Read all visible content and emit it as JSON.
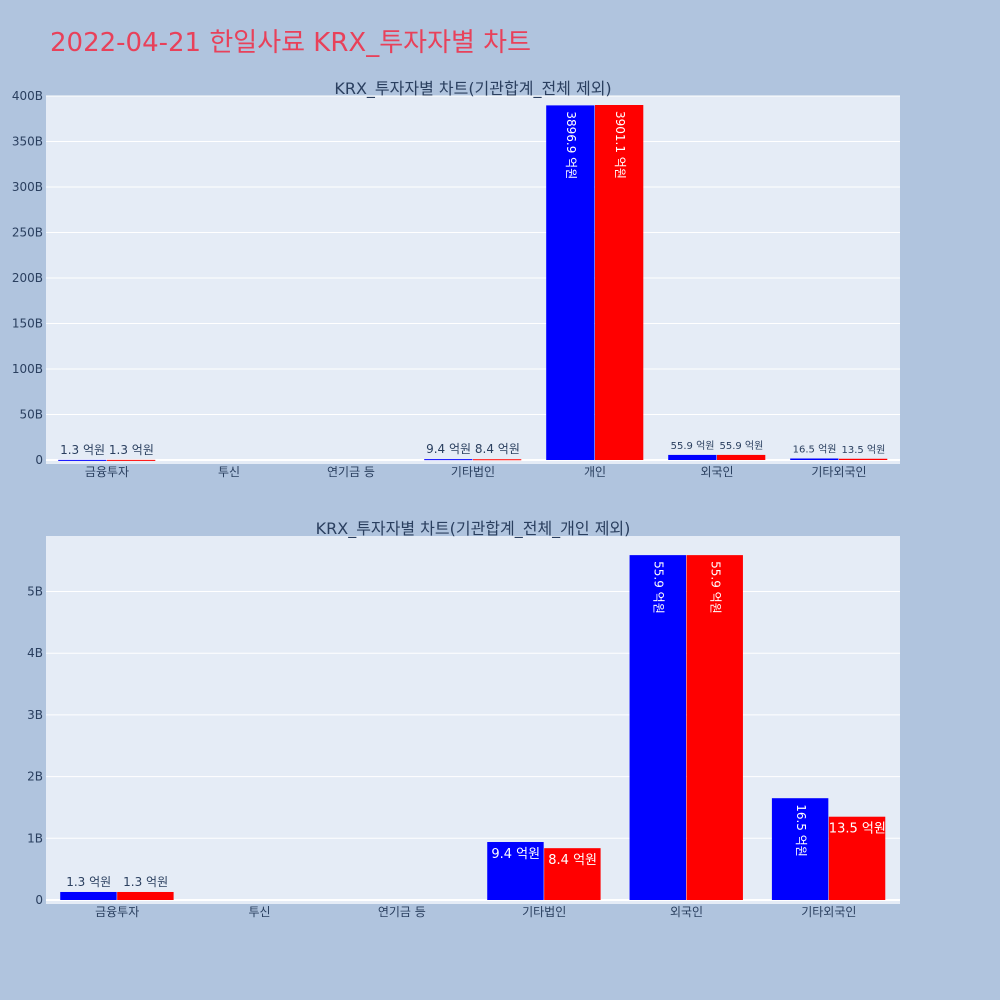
{
  "page": {
    "title": "2022-04-21 한일사료 KRX_투자자별 차트"
  },
  "colors": {
    "background": "#b0c4de",
    "plot_bg": "#e5ecf6",
    "title": "#e8415a",
    "series_blue": "#0000ff",
    "series_red": "#ff0000"
  },
  "chart_data": [
    {
      "type": "bar",
      "title": "KRX_투자자별 차트(기관합계_전체 제외)",
      "categories": [
        "금융투자",
        "투신",
        "연기금 등",
        "기타법인",
        "개인",
        "외국인",
        "기타외국인"
      ],
      "ylim": [
        0,
        400000000000
      ],
      "y_ticks": [
        0,
        50000000000,
        100000000000,
        150000000000,
        200000000000,
        250000000000,
        300000000000,
        350000000000,
        400000000000
      ],
      "y_tick_labels": [
        "0",
        "50B",
        "100B",
        "150B",
        "200B",
        "250B",
        "300B",
        "350B",
        "400B"
      ],
      "grid": true,
      "series": [
        {
          "color": "#0000ff",
          "values": [
            130000000,
            0,
            0,
            940000000,
            389690000000,
            5590000000,
            1650000000
          ],
          "labels": [
            "1.3 억원",
            "",
            "",
            "9.4 억원",
            "3896.9 억원",
            "55.9 억원",
            "16.5 억원"
          ]
        },
        {
          "color": "#ff0000",
          "values": [
            130000000,
            0,
            0,
            840000000,
            390110000000,
            5590000000,
            1350000000
          ],
          "labels": [
            "1.3 억원",
            "",
            "",
            "8.4 억원",
            "3901.1 억원",
            "55.9 억원",
            "13.5 억원"
          ]
        }
      ]
    },
    {
      "type": "bar",
      "title": "KRX_투자자별 차트(기관합계_전체_개인 제외)",
      "categories": [
        "금융투자",
        "투신",
        "연기금 등",
        "기타법인",
        "외국인",
        "기타외국인"
      ],
      "ylim": [
        0,
        5900000000
      ],
      "y_ticks": [
        0,
        1000000000,
        2000000000,
        3000000000,
        4000000000,
        5000000000
      ],
      "y_tick_labels": [
        "0",
        "1B",
        "2B",
        "3B",
        "4B",
        "5B"
      ],
      "grid": true,
      "series": [
        {
          "color": "#0000ff",
          "values": [
            130000000,
            0,
            0,
            940000000,
            5590000000,
            1650000000
          ],
          "labels": [
            "1.3 억원",
            "",
            "",
            "9.4 억원",
            "55.9 억원",
            "16.5 억원"
          ]
        },
        {
          "color": "#ff0000",
          "values": [
            130000000,
            0,
            0,
            840000000,
            5590000000,
            1350000000
          ],
          "labels": [
            "1.3 억원",
            "",
            "",
            "8.4 억원",
            "55.9 억원",
            "13.5 억원"
          ]
        }
      ]
    }
  ]
}
